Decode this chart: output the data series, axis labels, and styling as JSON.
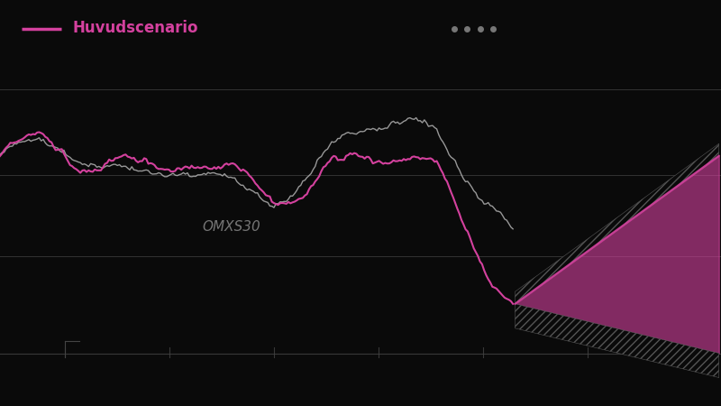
{
  "background_color": "#0a0a0a",
  "pink_color": "#d4419e",
  "gray_color": "#bbbbbb",
  "legend_label": "Huvudscenario",
  "omxs30_label": "OMXS30",
  "dots_color": "#777777",
  "grid_color": "#444444",
  "n_history": 250,
  "n_future": 100,
  "tick_count": 6,
  "figsize": [
    8.0,
    4.5
  ],
  "dpi": 100
}
